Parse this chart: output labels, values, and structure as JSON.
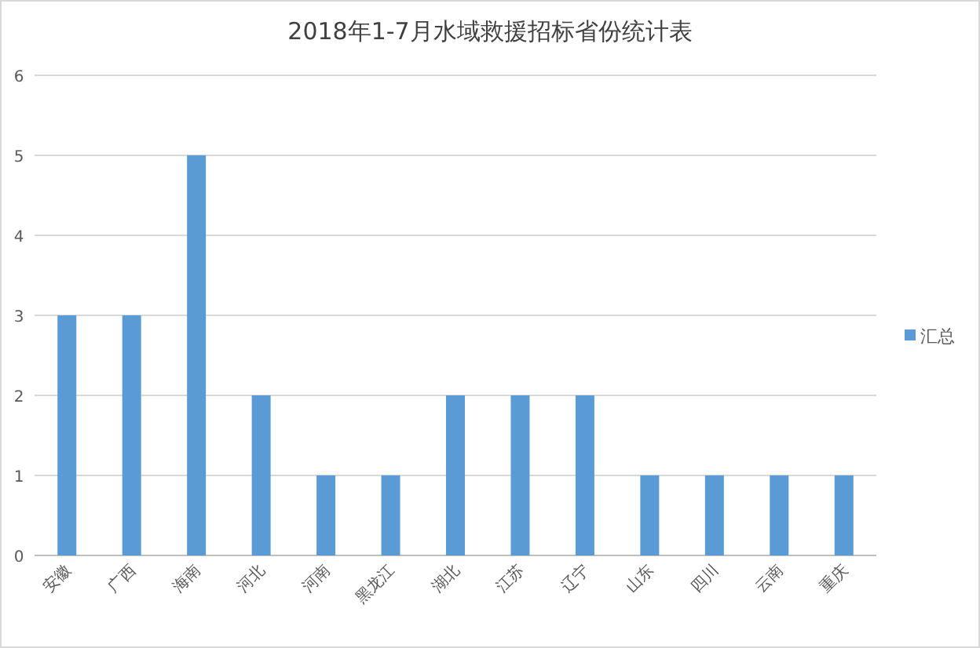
{
  "chart_data": {
    "type": "bar",
    "title": "2018年1-7月水域救援招标省份统计表",
    "categories": [
      "安徽",
      "广西",
      "海南",
      "河北",
      "河南",
      "黑龙江",
      "湖北",
      "江苏",
      "辽宁",
      "山东",
      "四川",
      "云南",
      "重庆"
    ],
    "series": [
      {
        "name": "汇总",
        "color": "#5b9bd5",
        "values": [
          3,
          3,
          5,
          2,
          1,
          1,
          2,
          2,
          2,
          1,
          1,
          1,
          1
        ]
      }
    ],
    "ylim": [
      0,
      6
    ],
    "yticks": [
      0,
      1,
      2,
      3,
      4,
      5,
      6
    ],
    "grid": "y",
    "legend": "right"
  }
}
